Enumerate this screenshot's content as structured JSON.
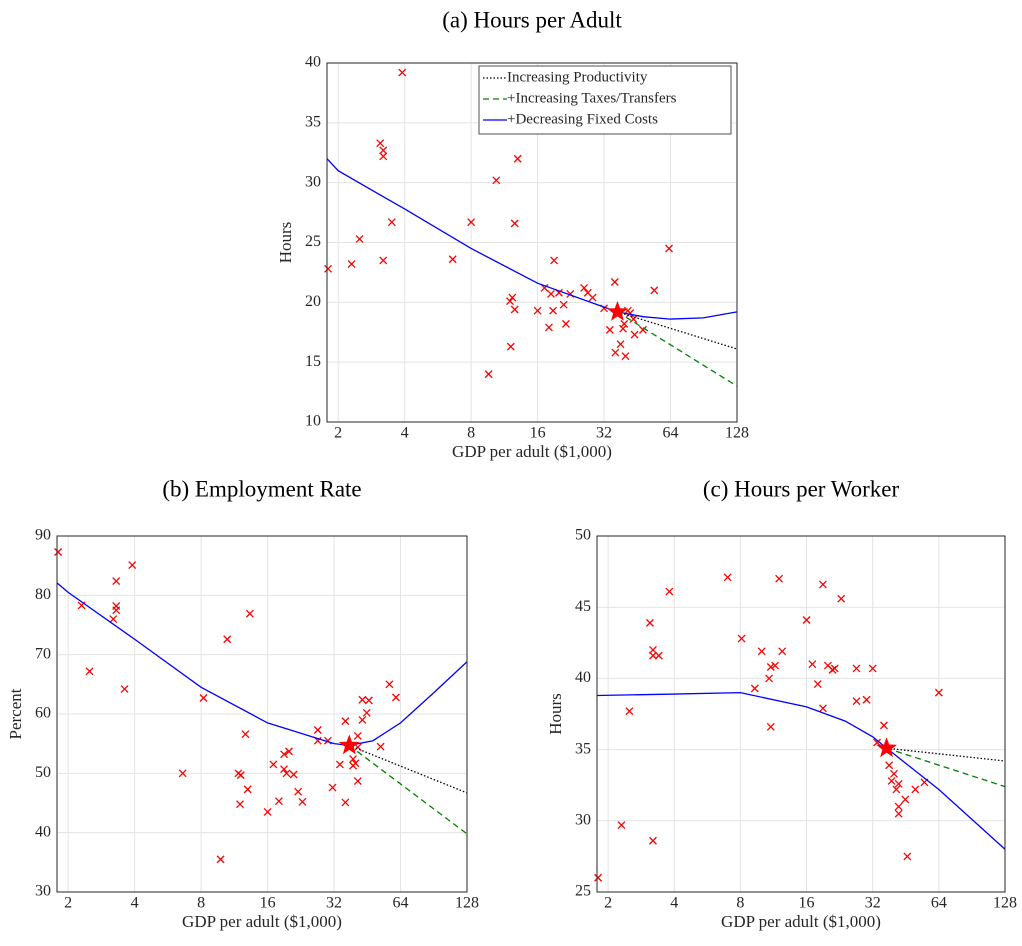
{
  "chart_data": [
    {
      "type": "scatter",
      "title": "(a) Hours per Adult",
      "xlabel": "GDP per adult ($1,000)",
      "ylabel": "Hours",
      "xscale": "log2",
      "xlim": [
        1.78,
        128
      ],
      "xticks": [
        2,
        4,
        8,
        16,
        32,
        64,
        128
      ],
      "ylim": [
        10,
        40
      ],
      "yticks": [
        10,
        15,
        20,
        25,
        30,
        35,
        40
      ],
      "grid": true,
      "legend": "upper right",
      "points": {
        "color": "#ff0000",
        "x": [
          1.8,
          2.3,
          2.5,
          3.1,
          3.2,
          3.2,
          3.2,
          3.5,
          3.9,
          6.6,
          8.0,
          9.6,
          10.4,
          12.0,
          12.3,
          12.1,
          12.6,
          12.6,
          13.0,
          16,
          17.2,
          18,
          18.4,
          19,
          18.8,
          20,
          21,
          21.5,
          22.5,
          26,
          27,
          28.4,
          32,
          34,
          35.8,
          36,
          38,
          39,
          39.5,
          40,
          41,
          42,
          43.5,
          44,
          48,
          54,
          63
        ],
        "values": [
          22.8,
          23.2,
          25.3,
          33.3,
          32.7,
          32.2,
          23.5,
          26.7,
          39.2,
          23.6,
          26.7,
          14.0,
          30.2,
          20.1,
          20.4,
          16.3,
          19.4,
          26.6,
          32.0,
          19.3,
          21.2,
          17.9,
          20.7,
          23.5,
          19.3,
          20.8,
          19.8,
          18.2,
          20.7,
          21.2,
          20.8,
          20.4,
          19.5,
          17.7,
          21.7,
          15.8,
          16.5,
          17.8,
          18.2,
          15.5,
          19.3,
          19.1,
          18.6,
          17.3,
          17.7,
          21.0,
          24.5
        ]
      },
      "star": {
        "color": "#ff0000",
        "x": [
          36.8
        ],
        "values": [
          19.2
        ]
      },
      "series": [
        {
          "name": "Increasing Productivity",
          "color": "#000000",
          "dash": "dotted",
          "x": [
            36.8,
            128
          ],
          "values": [
            19.2,
            16.1
          ]
        },
        {
          "name": "+Increasing Taxes/Transfers",
          "color": "#008000",
          "dash": "dashed",
          "x": [
            36.8,
            128
          ],
          "values": [
            19.2,
            13.0
          ]
        },
        {
          "name": "+Decreasing Fixed Costs",
          "color": "#0000ff",
          "dash": "solid",
          "x": [
            1.78,
            2,
            4,
            8,
            16,
            32,
            36.8,
            48,
            64,
            90,
            128
          ],
          "values": [
            32.0,
            31.0,
            27.8,
            24.5,
            21.6,
            19.6,
            19.2,
            18.8,
            18.6,
            18.7,
            19.2
          ]
        }
      ]
    },
    {
      "type": "scatter",
      "title": "(b) Employment Rate",
      "xlabel": "GDP per adult ($1,000)",
      "ylabel": "Percent",
      "xscale": "log2",
      "xlim": [
        1.78,
        128
      ],
      "xticks": [
        2,
        4,
        8,
        16,
        32,
        64,
        128
      ],
      "ylim": [
        30,
        90
      ],
      "yticks": [
        30,
        40,
        50,
        60,
        70,
        80,
        90
      ],
      "grid": true,
      "points": {
        "color": "#ff0000",
        "x": [
          1.8,
          2.3,
          2.5,
          3.3,
          3.3,
          3.3,
          3.2,
          3.6,
          3.9,
          6.6,
          8.2,
          9.8,
          10.5,
          11.8,
          12.1,
          12,
          12.7,
          13,
          13.3,
          16,
          17,
          18,
          19,
          19.5,
          19,
          20,
          21,
          22,
          23,
          27,
          27,
          30,
          31.5,
          34,
          36,
          36,
          39,
          39,
          40,
          41,
          41,
          41,
          43,
          43,
          45,
          46,
          52,
          57,
          61
        ],
        "values": [
          87.3,
          78.3,
          67.2,
          82.4,
          78.2,
          77.5,
          76.0,
          64.2,
          85.1,
          50.0,
          62.7,
          35.5,
          72.6,
          50.0,
          49.7,
          44.8,
          56.6,
          47.3,
          76.9,
          43.5,
          51.5,
          45.3,
          50.7,
          50.0,
          53.2,
          53.7,
          49.8,
          46.9,
          45.2,
          57.3,
          55.5,
          55.5,
          47.6,
          51.5,
          58.8,
          45.1,
          52.4,
          51.3,
          51.7,
          48.7,
          56.3,
          54.4,
          62.4,
          59.0,
          60.2,
          62.3,
          54.5,
          65.0,
          62.8
        ]
      },
      "star": {
        "color": "#ff0000",
        "x": [
          37.5
        ],
        "values": [
          54.7
        ]
      },
      "series": [
        {
          "color": "#000000",
          "dash": "dotted",
          "x": [
            37.5,
            128
          ],
          "values": [
            54.7,
            46.7
          ]
        },
        {
          "color": "#008000",
          "dash": "dashed",
          "x": [
            37.5,
            128
          ],
          "values": [
            54.7,
            39.8
          ]
        },
        {
          "color": "#0000ff",
          "dash": "solid",
          "x": [
            1.78,
            2,
            4,
            8,
            16,
            32,
            37.5,
            48,
            64,
            90,
            128
          ],
          "values": [
            82.1,
            80.5,
            72.6,
            64.5,
            58.5,
            55.0,
            54.7,
            55.5,
            58.5,
            63.5,
            68.8
          ]
        }
      ]
    },
    {
      "type": "scatter",
      "title": "(c) Hours per Worker",
      "xlabel": "GDP per adult ($1,000)",
      "ylabel": "Hours",
      "xscale": "log2",
      "xlim": [
        1.78,
        128
      ],
      "xticks": [
        2,
        4,
        8,
        16,
        32,
        64,
        128
      ],
      "ylim": [
        25,
        50
      ],
      "yticks": [
        25,
        30,
        35,
        40,
        45,
        50
      ],
      "grid": true,
      "points": {
        "color": "#ff0000",
        "x": [
          1.8,
          2.5,
          2.3,
          3.1,
          3.2,
          3.2,
          3.4,
          3.2,
          3.8,
          7.0,
          8.1,
          9.3,
          10,
          10.8,
          11,
          11.5,
          11,
          12,
          12.4,
          16,
          17,
          18,
          19,
          19,
          20,
          21,
          21.5,
          23,
          27,
          27,
          30,
          32,
          33.5,
          36,
          38,
          39,
          40,
          41,
          42,
          42,
          42,
          45,
          46,
          50,
          55,
          64
        ],
        "values": [
          26.0,
          37.7,
          29.7,
          43.9,
          42.0,
          41.6,
          41.6,
          28.6,
          46.1,
          47.1,
          42.8,
          39.3,
          41.9,
          40.0,
          40.8,
          40.9,
          36.6,
          47.0,
          41.9,
          44.1,
          41.0,
          39.6,
          46.6,
          37.9,
          40.9,
          40.6,
          40.7,
          45.6,
          40.7,
          38.4,
          38.5,
          40.7,
          35.5,
          36.7,
          33.9,
          32.8,
          33.3,
          32.2,
          32.6,
          31.0,
          30.5,
          31.5,
          27.5,
          32.2,
          32.7,
          39.0
        ]
      },
      "star": {
        "color": "#ff0000",
        "x": [
          37
        ],
        "values": [
          35.1
        ]
      },
      "series": [
        {
          "color": "#000000",
          "dash": "dotted",
          "x": [
            37,
            128
          ],
          "values": [
            35.1,
            34.2
          ]
        },
        {
          "color": "#008000",
          "dash": "dashed",
          "x": [
            37,
            128
          ],
          "values": [
            35.1,
            32.4
          ]
        },
        {
          "color": "#0000ff",
          "dash": "solid",
          "x": [
            1.78,
            4,
            8,
            16,
            24,
            32,
            37,
            64,
            128
          ],
          "values": [
            38.8,
            38.9,
            39.0,
            38.0,
            37.0,
            35.9,
            35.1,
            32.2,
            28.0
          ]
        }
      ]
    }
  ]
}
